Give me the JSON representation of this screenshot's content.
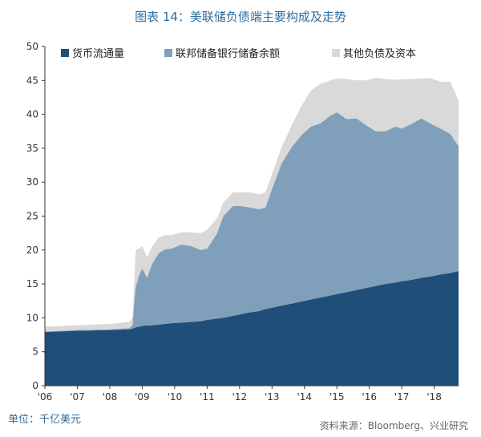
{
  "title": "图表 14：美联储负债端主要构成及走势",
  "unit_label": "单位：千亿美元",
  "source_label": "资料来源：Bloomberg、兴业研究",
  "colors": {
    "currency": "#1f4e79",
    "reserves": "#7f9fbb",
    "other": "#d9d9d9"
  },
  "chart_data": {
    "type": "area",
    "stacked": true,
    "title": "图表 14：美联储负债端主要构成及走势",
    "xlabel": "",
    "ylabel": "",
    "ylim": [
      0,
      50
    ],
    "yticks": [
      0,
      5,
      10,
      15,
      20,
      25,
      30,
      35,
      40,
      45,
      50
    ],
    "xticks": [
      "'06",
      "'07",
      "'08",
      "'09",
      "'10",
      "'11",
      "'12",
      "'13",
      "'14",
      "'15",
      "'16",
      "'17",
      "'18"
    ],
    "xtick_positions": [
      2006,
      2007,
      2008,
      2009,
      2010,
      2011,
      2012,
      2013,
      2014,
      2015,
      2016,
      2017,
      2018
    ],
    "xlim": [
      2006,
      2018.75
    ],
    "grid": false,
    "legend_position": "top",
    "x": [
      2006.0,
      2007.0,
      2008.0,
      2008.6,
      2008.7,
      2008.75,
      2008.8,
      2008.9,
      2009.0,
      2009.15,
      2009.3,
      2009.5,
      2009.7,
      2009.9,
      2010.2,
      2010.5,
      2010.8,
      2011.0,
      2011.3,
      2011.5,
      2011.8,
      2012.0,
      2012.3,
      2012.6,
      2012.8,
      2013.0,
      2013.3,
      2013.6,
      2013.9,
      2014.2,
      2014.5,
      2014.8,
      2015.0,
      2015.3,
      2015.6,
      2015.9,
      2016.2,
      2016.5,
      2016.8,
      2017.0,
      2017.3,
      2017.6,
      2017.9,
      2018.2,
      2018.5,
      2018.75
    ],
    "series": [
      {
        "name": "货币流通量",
        "values": [
          7.9,
          8.1,
          8.2,
          8.3,
          8.4,
          8.5,
          8.6,
          8.7,
          8.8,
          8.9,
          8.9,
          9.0,
          9.1,
          9.2,
          9.3,
          9.4,
          9.5,
          9.7,
          9.9,
          10.0,
          10.3,
          10.5,
          10.8,
          11.0,
          11.3,
          11.5,
          11.8,
          12.1,
          12.4,
          12.7,
          13.0,
          13.3,
          13.5,
          13.8,
          14.1,
          14.4,
          14.7,
          15.0,
          15.2,
          15.4,
          15.6,
          15.9,
          16.1,
          16.4,
          16.6,
          16.9
        ]
      },
      {
        "name": "联邦储备银行储备余额",
        "values": [
          0.1,
          0.1,
          0.1,
          0.2,
          0.5,
          3.5,
          6.0,
          7.5,
          8.5,
          7.0,
          9.0,
          10.5,
          11.0,
          11.0,
          11.5,
          11.2,
          10.5,
          10.5,
          12.5,
          15.0,
          16.2,
          16.0,
          15.5,
          15.0,
          15.0,
          17.5,
          21.0,
          23.0,
          24.5,
          25.5,
          25.7,
          26.5,
          26.8,
          25.5,
          25.3,
          24.0,
          22.8,
          22.5,
          23.0,
          22.5,
          23.0,
          23.5,
          22.5,
          21.5,
          20.5,
          18.4
        ]
      },
      {
        "name": "其他负债及资本",
        "values": [
          0.7,
          0.7,
          0.8,
          0.9,
          1.2,
          3.0,
          5.4,
          4.0,
          3.3,
          3.0,
          2.6,
          2.3,
          2.1,
          2.0,
          1.8,
          2.0,
          2.5,
          2.8,
          2.2,
          2.0,
          2.0,
          2.0,
          2.2,
          2.2,
          2.2,
          2.2,
          2.4,
          3.2,
          4.3,
          5.3,
          5.8,
          5.2,
          5.0,
          5.9,
          5.6,
          6.6,
          7.9,
          7.7,
          6.9,
          7.3,
          6.6,
          5.9,
          6.7,
          6.9,
          7.7,
          6.7
        ]
      }
    ]
  }
}
